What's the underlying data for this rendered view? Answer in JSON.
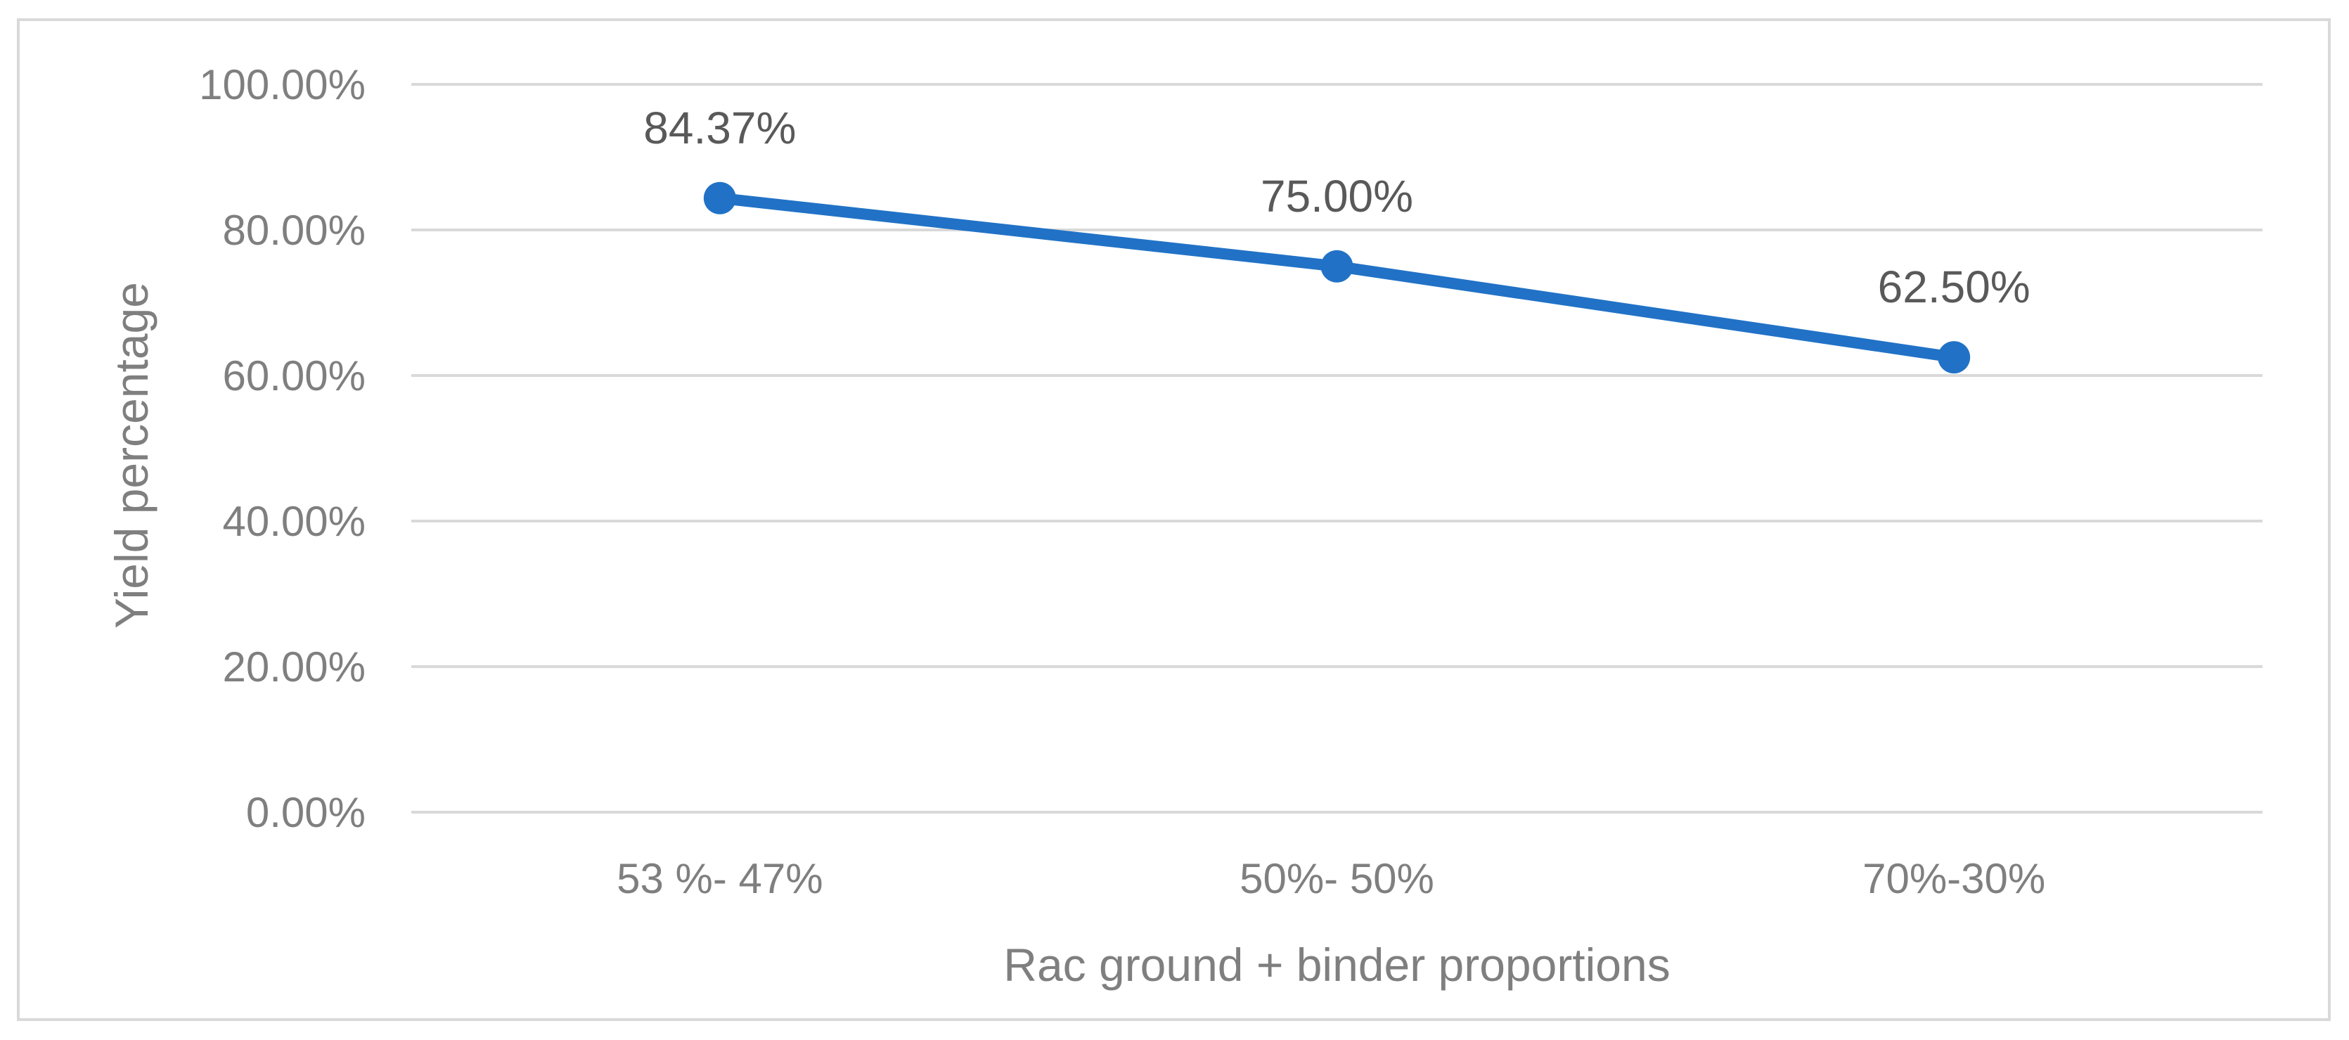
{
  "chart_data": {
    "type": "line",
    "title": "",
    "xlabel": "Rac ground + binder proportions",
    "ylabel": "Yield percentage",
    "categories": [
      "53 %- 47%",
      "50%- 50%",
      "70%-30%"
    ],
    "series": [
      {
        "values": [
          84.37,
          75.0,
          62.5
        ],
        "data_labels": [
          "84.37%",
          "75.00%",
          "62.50%"
        ],
        "color": "#2172c6"
      }
    ],
    "ylim": [
      0,
      100
    ],
    "yticks": [
      0,
      20,
      40,
      60,
      80,
      100
    ],
    "ytick_labels": [
      "0.00%",
      "20.00%",
      "40.00%",
      "60.00%",
      "80.00%",
      "100.00%"
    ],
    "grid": true,
    "legend": "none",
    "colors": {
      "gridline": "#d9d9d9",
      "text": "#7f7f7f",
      "label_text": "#595959",
      "border": "#d9d9d9"
    }
  }
}
